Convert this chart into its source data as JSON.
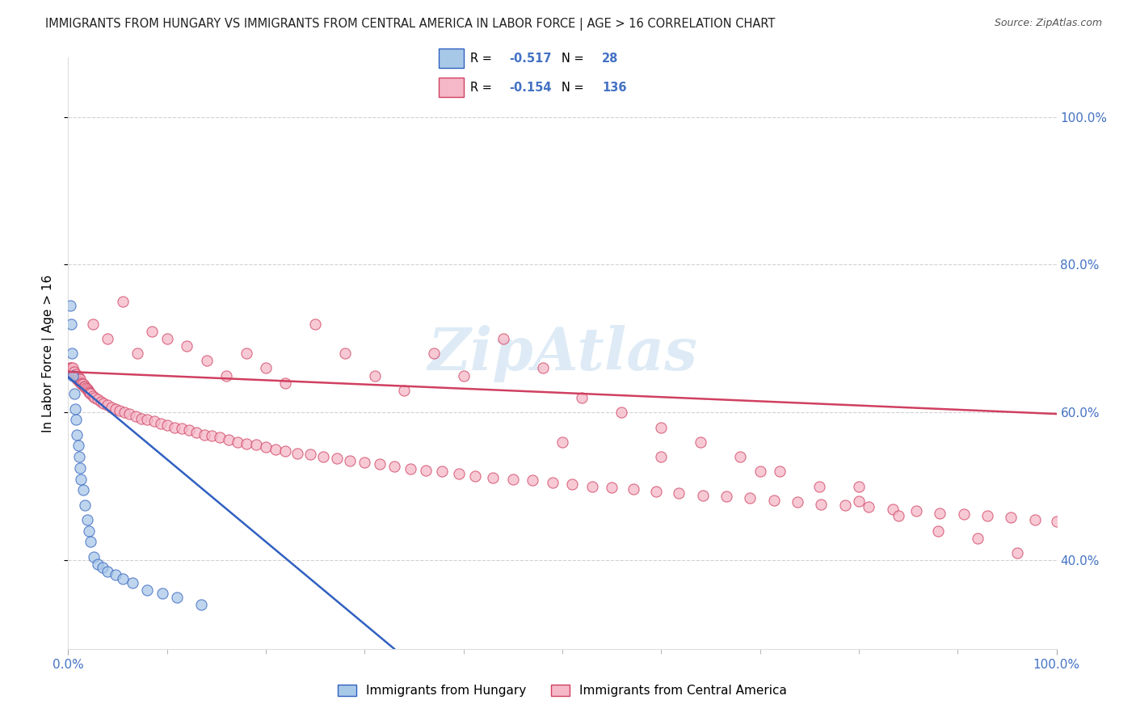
{
  "title": "IMMIGRANTS FROM HUNGARY VS IMMIGRANTS FROM CENTRAL AMERICA IN LABOR FORCE | AGE > 16 CORRELATION CHART",
  "source": "Source: ZipAtlas.com",
  "ylabel": "In Labor Force | Age > 16",
  "legend_entry1": "Immigrants from Hungary",
  "legend_entry2": "Immigrants from Central America",
  "R1": -0.517,
  "N1": 28,
  "R2": -0.154,
  "N2": 136,
  "color1": "#a8c8e8",
  "color2": "#f5b8c8",
  "line_color1": "#3060c0",
  "line_color2": "#d04060",
  "text_color_blue": "#4472c4",
  "title_color": "#222222",
  "background": "#ffffff",
  "grid_color": "#cccccc",
  "watermark": "ZipAtlas",
  "watermark_color": "#c8dff0",
  "xlim": [
    0.0,
    1.0
  ],
  "ylim": [
    0.28,
    1.08
  ],
  "yticks": [
    0.4,
    0.6,
    0.8,
    1.0
  ],
  "hungary_x": [
    0.002,
    0.003,
    0.004,
    0.005,
    0.006,
    0.007,
    0.008,
    0.009,
    0.01,
    0.011,
    0.012,
    0.013,
    0.015,
    0.017,
    0.019,
    0.021,
    0.023,
    0.026,
    0.03,
    0.035,
    0.04,
    0.048,
    0.055,
    0.065,
    0.08,
    0.095,
    0.11,
    0.135
  ],
  "hungary_y": [
    0.745,
    0.72,
    0.68,
    0.65,
    0.625,
    0.605,
    0.59,
    0.57,
    0.555,
    0.54,
    0.525,
    0.51,
    0.495,
    0.475,
    0.455,
    0.44,
    0.425,
    0.405,
    0.395,
    0.39,
    0.385,
    0.38,
    0.375,
    0.37,
    0.36,
    0.355,
    0.35,
    0.34
  ],
  "central_x": [
    0.002,
    0.003,
    0.004,
    0.005,
    0.005,
    0.006,
    0.006,
    0.007,
    0.007,
    0.008,
    0.008,
    0.009,
    0.009,
    0.01,
    0.01,
    0.011,
    0.011,
    0.012,
    0.012,
    0.013,
    0.014,
    0.015,
    0.016,
    0.017,
    0.018,
    0.019,
    0.02,
    0.021,
    0.022,
    0.023,
    0.025,
    0.027,
    0.03,
    0.033,
    0.036,
    0.04,
    0.044,
    0.048,
    0.052,
    0.057,
    0.062,
    0.068,
    0.074,
    0.08,
    0.087,
    0.094,
    0.1,
    0.108,
    0.115,
    0.122,
    0.13,
    0.138,
    0.145,
    0.153,
    0.162,
    0.171,
    0.18,
    0.19,
    0.2,
    0.21,
    0.22,
    0.232,
    0.245,
    0.258,
    0.272,
    0.285,
    0.3,
    0.315,
    0.33,
    0.346,
    0.362,
    0.378,
    0.395,
    0.412,
    0.43,
    0.45,
    0.47,
    0.49,
    0.51,
    0.53,
    0.55,
    0.572,
    0.595,
    0.618,
    0.642,
    0.666,
    0.69,
    0.714,
    0.738,
    0.762,
    0.786,
    0.81,
    0.834,
    0.858,
    0.882,
    0.906,
    0.93,
    0.954,
    0.978,
    1.0,
    0.025,
    0.04,
    0.055,
    0.07,
    0.085,
    0.1,
    0.12,
    0.14,
    0.16,
    0.18,
    0.2,
    0.22,
    0.25,
    0.28,
    0.31,
    0.34,
    0.37,
    0.4,
    0.44,
    0.48,
    0.52,
    0.56,
    0.6,
    0.64,
    0.68,
    0.72,
    0.76,
    0.8,
    0.84,
    0.88,
    0.92,
    0.96,
    0.5,
    0.6,
    0.7,
    0.8
  ],
  "central_y": [
    0.66,
    0.66,
    0.655,
    0.655,
    0.66,
    0.65,
    0.655,
    0.65,
    0.65,
    0.648,
    0.652,
    0.648,
    0.645,
    0.645,
    0.648,
    0.645,
    0.642,
    0.642,
    0.645,
    0.64,
    0.638,
    0.638,
    0.635,
    0.635,
    0.633,
    0.632,
    0.63,
    0.628,
    0.627,
    0.625,
    0.622,
    0.62,
    0.618,
    0.615,
    0.612,
    0.61,
    0.607,
    0.605,
    0.602,
    0.6,
    0.598,
    0.595,
    0.592,
    0.59,
    0.588,
    0.585,
    0.583,
    0.58,
    0.578,
    0.576,
    0.573,
    0.57,
    0.568,
    0.566,
    0.563,
    0.56,
    0.558,
    0.556,
    0.553,
    0.55,
    0.548,
    0.545,
    0.543,
    0.54,
    0.538,
    0.535,
    0.532,
    0.53,
    0.527,
    0.524,
    0.522,
    0.52,
    0.517,
    0.514,
    0.512,
    0.51,
    0.508,
    0.505,
    0.503,
    0.5,
    0.498,
    0.496,
    0.493,
    0.491,
    0.488,
    0.486,
    0.484,
    0.481,
    0.479,
    0.476,
    0.474,
    0.472,
    0.469,
    0.467,
    0.464,
    0.462,
    0.46,
    0.458,
    0.455,
    0.453,
    0.72,
    0.7,
    0.75,
    0.68,
    0.71,
    0.7,
    0.69,
    0.67,
    0.65,
    0.68,
    0.66,
    0.64,
    0.72,
    0.68,
    0.65,
    0.63,
    0.68,
    0.65,
    0.7,
    0.66,
    0.62,
    0.6,
    0.58,
    0.56,
    0.54,
    0.52,
    0.5,
    0.48,
    0.46,
    0.44,
    0.43,
    0.41,
    0.56,
    0.54,
    0.52,
    0.5
  ],
  "blue_line_x": [
    0.0,
    0.33
  ],
  "blue_line_y": [
    0.648,
    0.28
  ],
  "pink_line_x": [
    0.0,
    1.0
  ],
  "pink_line_y": [
    0.655,
    0.598
  ]
}
